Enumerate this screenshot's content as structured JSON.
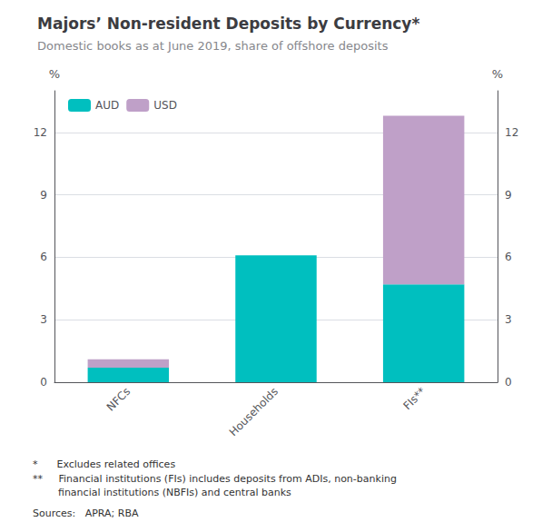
{
  "chart_data": {
    "type": "bar",
    "title": "Majors’ Non-resident Deposits by Currency*",
    "subtitle": "Domestic books as at June 2019, share of offshore deposits",
    "categories": [
      "NFCs",
      "Households",
      "FIs**"
    ],
    "series": [
      {
        "name": "AUD",
        "color": "#00BFBF",
        "values": [
          0.7,
          6.1,
          4.7
        ]
      },
      {
        "name": "USD",
        "color": "#BFA0C8",
        "values": [
          0.4,
          0.0,
          8.1
        ]
      }
    ],
    "stacked": true,
    "ylabel": "%",
    "y2label": "%",
    "ylim": [
      0,
      14
    ],
    "yticks": [
      0,
      3,
      6,
      9,
      12
    ],
    "y2lim": [
      0,
      14
    ],
    "y2ticks": [
      0,
      3,
      6,
      9,
      12
    ],
    "grid": true,
    "legend": "upper left",
    "annotations": [
      "*      Excludes related offices",
      "**     Financial institutions (FIs) includes deposits from ADIs, non-banking",
      "        financial institutions (NBFIs) and central banks",
      "Sources:   APRA; RBA"
    ]
  }
}
